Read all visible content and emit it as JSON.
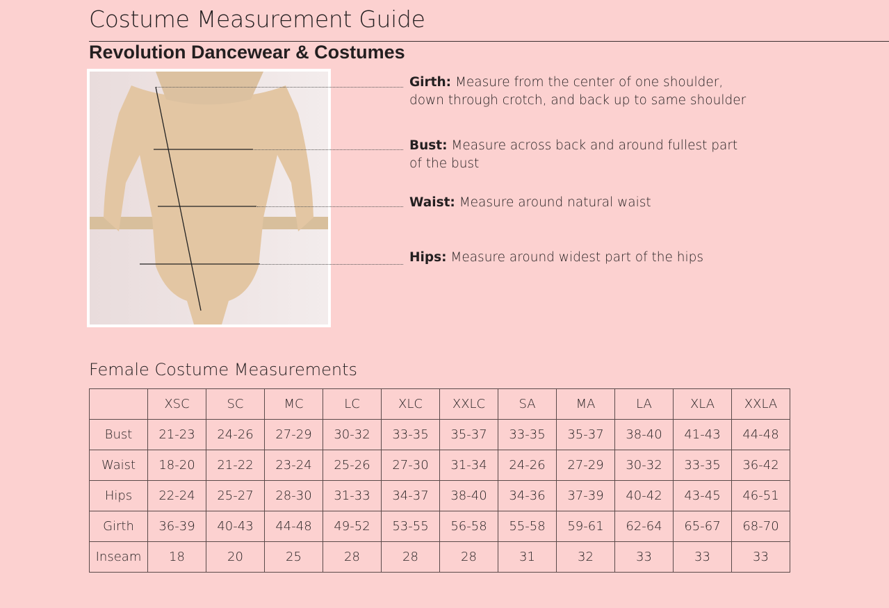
{
  "header": {
    "title": "Costume Measurement Guide",
    "subtitle": "Revolution Dancewear & Costumes"
  },
  "guide": [
    {
      "label": "Girth:",
      "lines": [
        "Measure from the center of one shoulder,",
        "down through crotch, and back up to same shoulder"
      ]
    },
    {
      "label": "Bust:",
      "lines": [
        "Measure across back and around fullest part",
        "of the bust"
      ]
    },
    {
      "label": "Waist:",
      "lines": [
        "Measure around natural waist"
      ]
    },
    {
      "label": "Hips:",
      "lines": [
        "Measure around widest part of the hips"
      ]
    }
  ],
  "table": {
    "title": "Female Costume Measurements",
    "columns": [
      "",
      "XSC",
      "SC",
      "MC",
      "LC",
      "XLC",
      "XXLC",
      "SA",
      "MA",
      "LA",
      "XLA",
      "XXLA"
    ],
    "rows": [
      [
        "Bust",
        "21-23",
        "24-26",
        "27-29",
        "30-32",
        "33-35",
        "35-37",
        "33-35",
        "35-37",
        "38-40",
        "41-43",
        "44-48"
      ],
      [
        "Waist",
        "18-20",
        "21-22",
        "23-24",
        "25-26",
        "27-30",
        "31-34",
        "24-26",
        "27-29",
        "30-32",
        "33-35",
        "36-42"
      ],
      [
        "Hips",
        "22-24",
        "25-27",
        "28-30",
        "31-33",
        "34-37",
        "38-40",
        "34-36",
        "37-39",
        "40-42",
        "43-45",
        "46-51"
      ],
      [
        "Girth",
        "36-39",
        "40-43",
        "44-48",
        "49-52",
        "53-55",
        "56-58",
        "55-58",
        "59-61",
        "62-64",
        "65-67",
        "68-70"
      ],
      [
        "Inseam",
        "18",
        "20",
        "25",
        "28",
        "28",
        "28",
        "31",
        "32",
        "33",
        "33",
        "33"
      ]
    ]
  },
  "colors": {
    "background": "#fcd1d0",
    "skin": "#e2c8a8"
  }
}
